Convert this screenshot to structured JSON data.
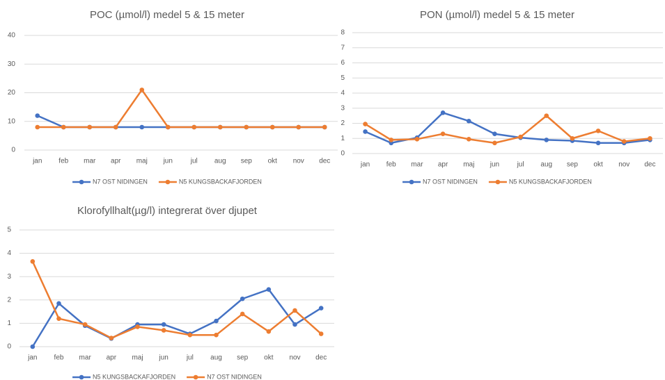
{
  "chart_data": [
    {
      "type": "line",
      "title": "POC (µmol/l) medel 5 & 15 meter",
      "categories": [
        "jan",
        "feb",
        "mar",
        "apr",
        "maj",
        "jun",
        "jul",
        "aug",
        "sep",
        "okt",
        "nov",
        "dec"
      ],
      "series": [
        {
          "name": "N7 OST NIDINGEN",
          "color": "#4472c4",
          "values": [
            12,
            8,
            8,
            8,
            8,
            8,
            8,
            8,
            8,
            8,
            8,
            8
          ]
        },
        {
          "name": "N5 KUNGSBACKAFJORDEN",
          "color": "#ed7d31",
          "values": [
            8,
            8,
            8,
            8,
            21,
            8,
            8,
            8,
            8,
            8,
            8,
            8
          ]
        }
      ],
      "ylim": [
        0,
        40
      ],
      "yticks": [
        0,
        10,
        20,
        30,
        40
      ],
      "grid": true,
      "legend": "bottom"
    },
    {
      "type": "line",
      "title": "PON (µmol/l) medel 5 & 15 meter",
      "categories": [
        "jan",
        "feb",
        "mar",
        "apr",
        "maj",
        "jun",
        "jul",
        "aug",
        "sep",
        "okt",
        "nov",
        "dec"
      ],
      "series": [
        {
          "name": "N7 OST NIDINGEN",
          "color": "#4472c4",
          "values": [
            1.45,
            0.7,
            1.05,
            2.7,
            2.15,
            1.3,
            1.05,
            0.9,
            0.85,
            0.7,
            0.7,
            0.9
          ]
        },
        {
          "name": "N5 KUNGSBACKAFJORDEN",
          "color": "#ed7d31",
          "values": [
            1.95,
            0.9,
            0.95,
            1.3,
            0.95,
            0.7,
            1.1,
            2.5,
            1.0,
            1.5,
            0.8,
            1.0
          ]
        }
      ],
      "ylim": [
        0,
        8
      ],
      "yticks": [
        0,
        1,
        2,
        3,
        4,
        5,
        6,
        7,
        8
      ],
      "grid": true,
      "legend": "bottom"
    },
    {
      "type": "line",
      "title": "Klorofyllhalt(µg/l) integrerat över djupet",
      "categories": [
        "jan",
        "feb",
        "mar",
        "apr",
        "maj",
        "jun",
        "jul",
        "aug",
        "sep",
        "okt",
        "nov",
        "dec"
      ],
      "series": [
        {
          "name": "N5 KUNGSBACKAFJORDEN",
          "color": "#4472c4",
          "values": [
            0,
            1.85,
            0.9,
            0.35,
            0.95,
            0.95,
            0.55,
            1.1,
            2.05,
            2.45,
            0.95,
            1.65
          ]
        },
        {
          "name": "N7 OST NIDINGEN",
          "color": "#ed7d31",
          "values": [
            3.65,
            1.2,
            0.95,
            0.37,
            0.85,
            0.7,
            0.5,
            0.5,
            1.4,
            0.65,
            1.55,
            0.55
          ]
        }
      ],
      "ylim": [
        0,
        5
      ],
      "yticks": [
        0,
        1,
        2,
        3,
        4,
        5
      ],
      "grid": true,
      "legend": "bottom"
    }
  ]
}
